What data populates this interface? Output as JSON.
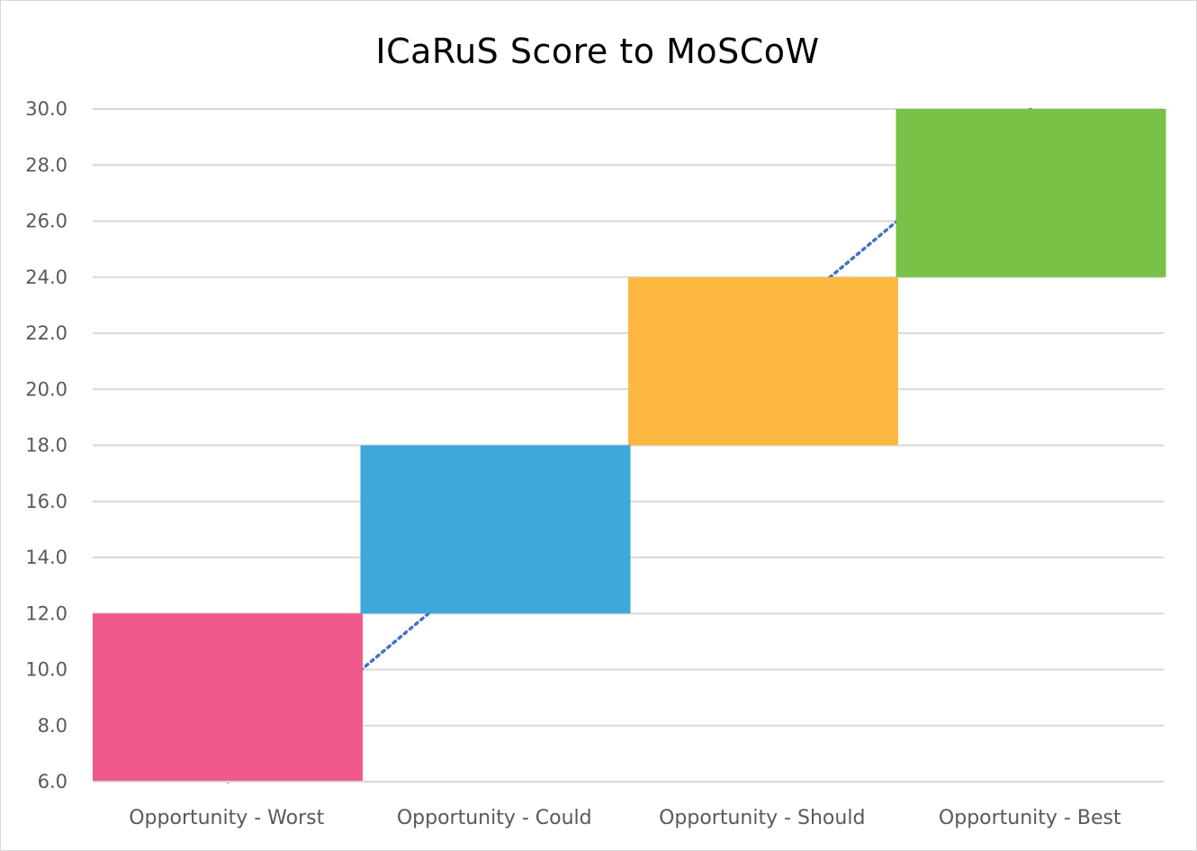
{
  "chart_data": {
    "type": "bar",
    "subtype": "floating-range",
    "title": "ICaRuS Score to MoSCoW",
    "xlabel": "",
    "ylabel": "",
    "categories": [
      "Opportunity - Worst",
      "Opportunity - Could",
      "Opportunity - Should",
      "Opportunity - Best"
    ],
    "ranges": [
      {
        "low": 6.0,
        "high": 12.0
      },
      {
        "low": 12.0,
        "high": 18.0
      },
      {
        "low": 18.0,
        "high": 24.0
      },
      {
        "low": 24.0,
        "high": 30.0
      }
    ],
    "colors": [
      "#f05a8a",
      "#3da8d9",
      "#fdb93f",
      "#79c147"
    ],
    "ylim": [
      6.0,
      30.0
    ],
    "yticks": [
      "6.0",
      "8.0",
      "10.0",
      "12.0",
      "14.0",
      "16.0",
      "18.0",
      "20.0",
      "22.0",
      "24.0",
      "26.0",
      "28.0",
      "30.0"
    ],
    "grid": true,
    "legend": "none",
    "trendline": {
      "style": "dotted",
      "color": "#4472c4",
      "points": [
        {
          "category": "Opportunity - Worst",
          "value": 6.0
        },
        {
          "category": "Opportunity - Best",
          "value": 30.0
        }
      ]
    }
  }
}
